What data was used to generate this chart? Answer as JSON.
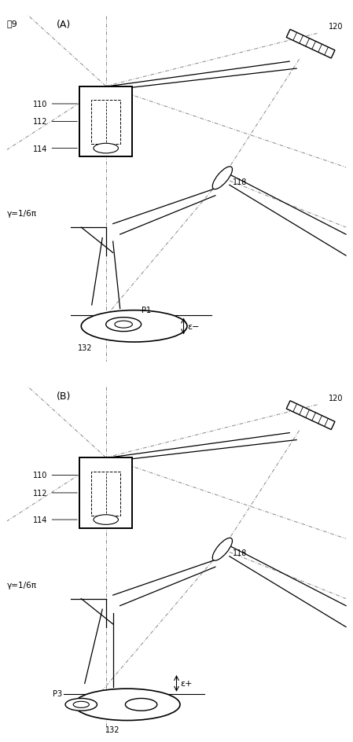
{
  "fig_label": "図9",
  "panel_A_label": "(A)",
  "panel_B_label": "(B)",
  "background_color": "#ffffff",
  "line_color": "#000000",
  "dash_dot_color": "#888888",
  "labels": {
    "110": "110",
    "112": "112",
    "114": "114",
    "118": "118",
    "120": "120",
    "132": "132",
    "P1": "P1",
    "P3": "P3",
    "gamma": "γ=1/6π",
    "epsilon_minus": "ε−",
    "epsilon_plus": "ε+"
  }
}
